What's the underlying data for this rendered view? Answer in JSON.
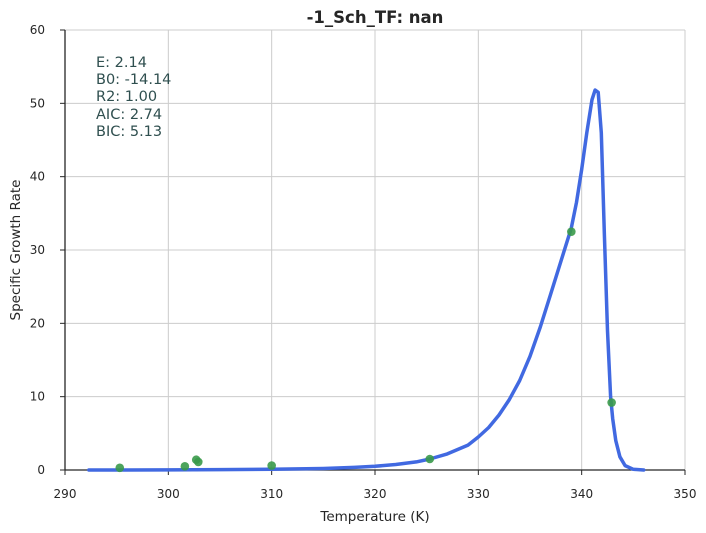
{
  "chart_data": {
    "type": "line",
    "title": "-1_Sch_TF: nan",
    "xlabel": "Temperature (K)",
    "ylabel": "Specific Growth Rate",
    "xlim": [
      290,
      350
    ],
    "ylim": [
      0,
      60
    ],
    "xticks": [
      290,
      300,
      310,
      320,
      330,
      340,
      350
    ],
    "yticks": [
      0,
      10,
      20,
      30,
      40,
      50,
      60
    ],
    "grid": true,
    "annotations": [
      "E:  2.14",
      "B0:  -14.14",
      "R2:  1.00",
      "AIC: 2.74",
      "BIC: 5.13"
    ],
    "series": [
      {
        "kind": "scatter",
        "color": "#3a9a4a",
        "points": [
          {
            "x": 295.3,
            "y": 0.3
          },
          {
            "x": 301.6,
            "y": 0.5
          },
          {
            "x": 302.7,
            "y": 1.4
          },
          {
            "x": 302.9,
            "y": 1.1
          },
          {
            "x": 310.0,
            "y": 0.6
          },
          {
            "x": 325.3,
            "y": 1.5
          },
          {
            "x": 339.0,
            "y": 32.5
          },
          {
            "x": 342.9,
            "y": 9.2
          }
        ]
      },
      {
        "kind": "line",
        "color": "#4169e1",
        "points": [
          {
            "x": 292.3,
            "y": 0.0
          },
          {
            "x": 300.0,
            "y": 0.02
          },
          {
            "x": 305.0,
            "y": 0.05
          },
          {
            "x": 310.0,
            "y": 0.1
          },
          {
            "x": 315.0,
            "y": 0.2
          },
          {
            "x": 318.0,
            "y": 0.35
          },
          {
            "x": 320.0,
            "y": 0.5
          },
          {
            "x": 322.0,
            "y": 0.75
          },
          {
            "x": 324.0,
            "y": 1.1
          },
          {
            "x": 325.3,
            "y": 1.5
          },
          {
            "x": 327.0,
            "y": 2.2
          },
          {
            "x": 329.0,
            "y": 3.4
          },
          {
            "x": 330.0,
            "y": 4.5
          },
          {
            "x": 331.0,
            "y": 5.8
          },
          {
            "x": 332.0,
            "y": 7.5
          },
          {
            "x": 333.0,
            "y": 9.6
          },
          {
            "x": 334.0,
            "y": 12.2
          },
          {
            "x": 335.0,
            "y": 15.5
          },
          {
            "x": 336.0,
            "y": 19.5
          },
          {
            "x": 337.0,
            "y": 24.0
          },
          {
            "x": 338.0,
            "y": 28.5
          },
          {
            "x": 339.0,
            "y": 33.0
          },
          {
            "x": 339.5,
            "y": 36.5
          },
          {
            "x": 340.0,
            "y": 41.0
          },
          {
            "x": 340.5,
            "y": 46.0
          },
          {
            "x": 341.0,
            "y": 50.5
          },
          {
            "x": 341.3,
            "y": 51.8
          },
          {
            "x": 341.6,
            "y": 51.5
          },
          {
            "x": 341.9,
            "y": 46.0
          },
          {
            "x": 342.2,
            "y": 32.0
          },
          {
            "x": 342.5,
            "y": 19.0
          },
          {
            "x": 342.8,
            "y": 10.0
          },
          {
            "x": 343.0,
            "y": 7.0
          },
          {
            "x": 343.3,
            "y": 4.0
          },
          {
            "x": 343.7,
            "y": 1.8
          },
          {
            "x": 344.2,
            "y": 0.6
          },
          {
            "x": 345.0,
            "y": 0.1
          },
          {
            "x": 346.0,
            "y": 0.0
          }
        ]
      }
    ]
  }
}
